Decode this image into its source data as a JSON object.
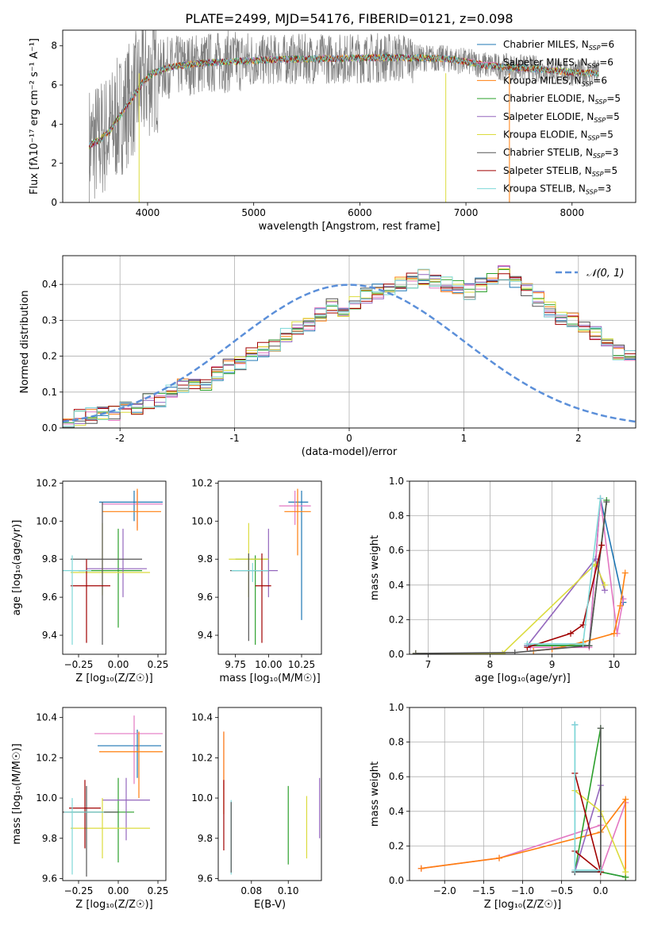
{
  "figure_title": "PLATE=2499, MJD=54176, FIBERID=0121, z=0.098",
  "colors": {
    "chabrier_miles": "#1f77b4",
    "salpeter_miles": "#e377c2",
    "kroupa_miles": "#ff7f0e",
    "chabrier_elodie": "#2ca02c",
    "salpeter_elodie": "#9467bd",
    "kroupa_elodie": "#dbdb3d",
    "chabrier_stelib": "#555555",
    "salpeter_stelib": "#a00000",
    "kroupa_stelib": "#7fd8d8",
    "gauss": "#5b8fd9"
  },
  "chart_data": [
    {
      "id": "spectrum",
      "type": "line",
      "xlabel": "wavelength [Angstrom, rest frame]",
      "ylabel": "Flux [f$_\\lambda$10$^{-17}$ erg cm$^{-2}$ s$^{-1}$ A$^{-1}$]",
      "ylabel_display": "Flux [fλ10⁻¹⁷ erg cm⁻² s⁻¹ A⁻¹]",
      "xlim": [
        3200,
        8600
      ],
      "ylim": [
        0,
        8.8
      ],
      "xticks": [
        4000,
        5000,
        6000,
        7000,
        8000
      ],
      "yticks": [
        0,
        2,
        4,
        6,
        8
      ],
      "data_wavelength_range": [
        3450,
        8250
      ],
      "continuum_x": [
        3450,
        3550,
        3650,
        3750,
        3850,
        3950,
        4050,
        4200,
        4400,
        4600,
        4800,
        5000,
        5200,
        5400,
        5600,
        5800,
        6000,
        6200,
        6400,
        6600,
        6800,
        7000,
        7200,
        7400,
        7600,
        7800,
        8000,
        8250
      ],
      "continuum_y": [
        2.9,
        3.2,
        3.7,
        4.5,
        5.3,
        6.1,
        6.6,
        6.9,
        7.05,
        7.15,
        7.2,
        7.25,
        7.3,
        7.32,
        7.35,
        7.35,
        7.38,
        7.4,
        7.4,
        7.38,
        7.35,
        7.2,
        7.0,
        6.9,
        6.85,
        6.75,
        6.65,
        6.6
      ],
      "legend_position": "upper right",
      "legend": [
        {
          "label": "Chabrier MILES, N",
          "sub": "SSP",
          "suffix": "=6",
          "color": "#1f77b4"
        },
        {
          "label": "Salpeter MILES, N",
          "sub": "SSP",
          "suffix": "=6",
          "color": "#e377c2"
        },
        {
          "label": "Kroupa MILES, N",
          "sub": "SSP",
          "suffix": "=6",
          "color": "#ff7f0e"
        },
        {
          "label": "Chabrier ELODIE, N",
          "sub": "SSP",
          "suffix": "=5",
          "color": "#2ca02c"
        },
        {
          "label": "Salpeter ELODIE, N",
          "sub": "SSP",
          "suffix": "=5",
          "color": "#9467bd"
        },
        {
          "label": "Kroupa ELODIE, N",
          "sub": "SSP",
          "suffix": "=5",
          "color": "#dbdb3d"
        },
        {
          "label": "Chabrier STELIB, N",
          "sub": "SSP",
          "suffix": "=3",
          "color": "#555555"
        },
        {
          "label": "Salpeter STELIB, N",
          "sub": "SSP",
          "suffix": "=5",
          "color": "#a00000"
        },
        {
          "label": "Kroupa STELIB, N",
          "sub": "SSP",
          "suffix": "=3",
          "color": "#7fd8d8"
        }
      ]
    },
    {
      "id": "residual_hist",
      "type": "histogram",
      "xlabel": "(data-model)/error",
      "ylabel": "Normed distribution",
      "xlim": [
        -2.5,
        2.5
      ],
      "ylim": [
        0,
        0.48
      ],
      "xticks": [
        -2,
        -1,
        0,
        1,
        2
      ],
      "yticks": [
        0.0,
        0.1,
        0.2,
        0.3,
        0.4
      ],
      "grid": true,
      "bin_edges_start": -2.5,
      "bin_width": 0.1,
      "values": [
        0.02,
        0.03,
        0.035,
        0.04,
        0.04,
        0.055,
        0.06,
        0.075,
        0.08,
        0.1,
        0.12,
        0.13,
        0.12,
        0.15,
        0.17,
        0.18,
        0.21,
        0.22,
        0.23,
        0.26,
        0.28,
        0.29,
        0.32,
        0.34,
        0.33,
        0.35,
        0.37,
        0.38,
        0.39,
        0.4,
        0.41,
        0.42,
        0.41,
        0.4,
        0.39,
        0.38,
        0.4,
        0.42,
        0.43,
        0.41,
        0.39,
        0.36,
        0.33,
        0.31,
        0.3,
        0.28,
        0.26,
        0.23,
        0.21,
        0.2
      ],
      "gauss_label": "𝒩(0, 1)",
      "legend_position": "upper right"
    },
    {
      "id": "age_vs_Z",
      "type": "errorbar",
      "xlabel": "Z [log₁₀(Z/Z☉)]",
      "ylabel": "age  [log₁₀(age/yr)]",
      "xlim": [
        -0.35,
        0.3
      ],
      "ylim": [
        9.3,
        10.21
      ],
      "xticks": [
        -0.25,
        0.0,
        0.25
      ],
      "xticklabels": [
        "−0.25",
        "0.00",
        "0.25"
      ],
      "yticks": [
        9.4,
        9.6,
        9.8,
        10.0,
        10.2
      ],
      "points": [
        {
          "x": 0.1,
          "xerr": [
            0.22,
            0.18
          ],
          "y": 10.1,
          "yerr": [
            0.1,
            0.06
          ],
          "color": "#1f77b4"
        },
        {
          "x": 0.12,
          "xerr": [
            0.22,
            0.16
          ],
          "y": 10.09,
          "yerr": [
            0.13,
            0.07
          ],
          "color": "#e377c2"
        },
        {
          "x": 0.12,
          "xerr": [
            0.22,
            0.15
          ],
          "y": 10.05,
          "yerr": [
            0.1,
            0.12
          ],
          "color": "#ff7f0e"
        },
        {
          "x": 0.0,
          "xerr": [
            0.25,
            0.15
          ],
          "y": 9.74,
          "yerr": [
            0.3,
            0.22
          ],
          "color": "#2ca02c"
        },
        {
          "x": 0.03,
          "xerr": [
            0.23,
            0.15
          ],
          "y": 9.75,
          "yerr": [
            0.15,
            0.21
          ],
          "color": "#9467bd"
        },
        {
          "x": -0.1,
          "xerr": [
            0.2,
            0.3
          ],
          "y": 9.73,
          "yerr": [
            0.12,
            0.26
          ],
          "color": "#dbdb3d"
        },
        {
          "x": -0.1,
          "xerr": [
            0.2,
            0.25
          ],
          "y": 9.8,
          "yerr": [
            0.45,
            0.3
          ],
          "color": "#555555"
        },
        {
          "x": -0.2,
          "xerr": [
            0.1,
            0.15
          ],
          "y": 9.66,
          "yerr": [
            0.3,
            0.14
          ],
          "color": "#a00000"
        },
        {
          "x": -0.29,
          "xerr": [
            0.06,
            0.12
          ],
          "y": 9.74,
          "yerr": [
            0.39,
            0.08
          ],
          "color": "#7fd8d8"
        }
      ]
    },
    {
      "id": "age_vs_mass",
      "type": "errorbar",
      "xlabel": "mass [log₁₀(M/M☉)]",
      "xlim": [
        9.62,
        10.4
      ],
      "ylim": [
        9.3,
        10.21
      ],
      "xticks": [
        9.75,
        10.0,
        10.25
      ],
      "xticklabels": [
        "9.75",
        "10.00",
        "10.25"
      ],
      "yticks": [
        9.4,
        9.6,
        9.8,
        10.0,
        10.2
      ],
      "points": [
        {
          "x": 10.25,
          "xerr": [
            0.1,
            0.05
          ],
          "y": 10.1,
          "yerr": [
            0.62,
            0.06
          ],
          "color": "#1f77b4"
        },
        {
          "x": 10.2,
          "xerr": [
            0.12,
            0.12
          ],
          "y": 10.08,
          "yerr": [
            0.1,
            0.08
          ],
          "color": "#e377c2"
        },
        {
          "x": 10.22,
          "xerr": [
            0.1,
            0.1
          ],
          "y": 10.05,
          "yerr": [
            0.23,
            0.12
          ],
          "color": "#ff7f0e"
        },
        {
          "x": 9.9,
          "xerr": [
            0.15,
            0.1
          ],
          "y": 9.8,
          "yerr": [
            0.45,
            0.02
          ],
          "color": "#2ca02c"
        },
        {
          "x": 10.0,
          "xerr": [
            0.1,
            0.07
          ],
          "y": 9.74,
          "yerr": [
            0.14,
            0.22
          ],
          "color": "#9467bd"
        },
        {
          "x": 9.85,
          "xerr": [
            0.15,
            0.15
          ],
          "y": 9.8,
          "yerr": [
            0.2,
            0.19
          ],
          "color": "#dbdb3d"
        },
        {
          "x": 9.85,
          "xerr": [
            0.14,
            0.15
          ],
          "y": 9.74,
          "yerr": [
            0.37,
            0.09
          ],
          "color": "#555555"
        },
        {
          "x": 9.95,
          "xerr": [
            0.05,
            0.07
          ],
          "y": 9.66,
          "yerr": [
            0.3,
            0.17
          ],
          "color": "#a00000"
        },
        {
          "x": 9.88,
          "xerr": [
            0.16,
            0.12
          ],
          "y": 9.74,
          "yerr": [
            0.06,
            0.04
          ],
          "color": "#7fd8d8"
        }
      ]
    },
    {
      "id": "mw_vs_age",
      "type": "line",
      "xlabel": "age  [log₁₀(age/yr)]",
      "ylabel": "mass weight",
      "xlim": [
        6.7,
        10.35
      ],
      "ylim": [
        0,
        1.0
      ],
      "xticks": [
        7,
        8,
        9,
        10
      ],
      "yticks": [
        0.0,
        0.2,
        0.4,
        0.6,
        0.8,
        1.0
      ],
      "grid": true,
      "series": [
        {
          "color": "#1f77b4",
          "x": [
            8.6,
            9.6,
            9.78,
            10.15
          ],
          "y": [
            0.05,
            0.05,
            0.9,
            0.3
          ]
        },
        {
          "color": "#e377c2",
          "x": [
            8.65,
            9.6,
            9.78,
            10.05,
            10.15
          ],
          "y": [
            0.04,
            0.04,
            0.9,
            0.12,
            0.32
          ]
        },
        {
          "color": "#ff7f0e",
          "x": [
            8.7,
            9.0,
            9.5,
            10.0,
            10.1,
            10.18
          ],
          "y": [
            0.02,
            0.03,
            0.07,
            0.12,
            0.28,
            0.47
          ]
        },
        {
          "color": "#2ca02c",
          "x": [
            8.6,
            9.6,
            9.88
          ],
          "y": [
            0.05,
            0.05,
            0.89
          ]
        },
        {
          "color": "#9467bd",
          "x": [
            8.6,
            9.7,
            9.85
          ],
          "y": [
            0.05,
            0.55,
            0.37
          ]
        },
        {
          "color": "#dbdb3d",
          "x": [
            6.8,
            8.2,
            9.7,
            9.85
          ],
          "y": [
            0.005,
            0.005,
            0.52,
            0.4
          ]
        },
        {
          "color": "#555555",
          "x": [
            6.8,
            8.4,
            9.6,
            9.88
          ],
          "y": [
            0.005,
            0.01,
            0.05,
            0.88
          ]
        },
        {
          "color": "#a00000",
          "x": [
            8.6,
            9.3,
            9.5,
            9.8
          ],
          "y": [
            0.04,
            0.12,
            0.17,
            0.63
          ]
        },
        {
          "color": "#7fd8d8",
          "x": [
            8.6,
            9.5,
            9.78
          ],
          "y": [
            0.06,
            0.06,
            0.9
          ]
        }
      ]
    },
    {
      "id": "mass_vs_Z",
      "type": "errorbar",
      "xlabel": "Z [log₁₀(Z/Z☉)]",
      "ylabel": "mass [log₁₀(M/M☉)]",
      "xlim": [
        -0.35,
        0.3
      ],
      "ylim": [
        9.59,
        10.45
      ],
      "xticks": [
        -0.25,
        0.0,
        0.25
      ],
      "xticklabels": [
        "−0.25",
        "0.00",
        "0.25"
      ],
      "yticks": [
        9.6,
        9.8,
        10.0,
        10.2,
        10.4
      ],
      "points": [
        {
          "x": 0.12,
          "xerr": [
            0.25,
            0.15
          ],
          "y": 10.26,
          "yerr": [
            0.16,
            0.08
          ],
          "color": "#1f77b4"
        },
        {
          "x": 0.1,
          "xerr": [
            0.25,
            0.18
          ],
          "y": 10.32,
          "yerr": [
            0.25,
            0.09
          ],
          "color": "#e377c2"
        },
        {
          "x": 0.13,
          "xerr": [
            0.25,
            0.15
          ],
          "y": 10.23,
          "yerr": [
            0.23,
            0.1
          ],
          "color": "#ff7f0e"
        },
        {
          "x": 0.0,
          "xerr": [
            0.3,
            0.1
          ],
          "y": 9.93,
          "yerr": [
            0.25,
            0.17
          ],
          "color": "#2ca02c"
        },
        {
          "x": 0.05,
          "xerr": [
            0.15,
            0.15
          ],
          "y": 9.99,
          "yerr": [
            0.2,
            0.11
          ],
          "color": "#9467bd"
        },
        {
          "x": -0.1,
          "xerr": [
            0.2,
            0.3
          ],
          "y": 9.85,
          "yerr": [
            0.15,
            0.15
          ],
          "color": "#dbdb3d"
        },
        {
          "x": -0.2,
          "xerr": [
            0.15,
            0.2
          ],
          "y": 9.93,
          "yerr": [
            0.32,
            0.13
          ],
          "color": "#555555"
        },
        {
          "x": -0.21,
          "xerr": [
            0.1,
            0.1
          ],
          "y": 9.95,
          "yerr": [
            0.2,
            0.14
          ],
          "color": "#a00000"
        },
        {
          "x": -0.29,
          "xerr": [
            0.05,
            0.2
          ],
          "y": 9.93,
          "yerr": [
            0.31,
            0.07
          ],
          "color": "#7fd8d8"
        }
      ]
    },
    {
      "id": "mass_vs_ebv",
      "type": "errorbar",
      "xlabel": "E(B-V)",
      "xlim": [
        0.062,
        0.118
      ],
      "ylim": [
        9.59,
        10.45
      ],
      "xticks": [
        0.08,
        0.1
      ],
      "xticklabels": [
        "0.08",
        "0.10"
      ],
      "yticks": [
        9.6,
        9.8,
        10.0,
        10.2,
        10.4
      ],
      "points": [
        {
          "x": 0.065,
          "y": 10.2,
          "yerr": [
            0.16,
            0.13
          ],
          "color": "#e377c2"
        },
        {
          "x": 0.065,
          "y": 10.1,
          "yerr": [
            0.18,
            0.23
          ],
          "color": "#ff7f0e"
        },
        {
          "x": 0.065,
          "y": 9.92,
          "yerr": [
            0.18,
            0.17
          ],
          "color": "#a00000"
        },
        {
          "x": 0.069,
          "y": 9.8,
          "yerr": [
            0.18,
            0.19
          ],
          "color": "#7fd8d8"
        },
        {
          "x": 0.069,
          "y": 9.8,
          "yerr": [
            0.17,
            0.18
          ],
          "color": "#555555"
        },
        {
          "x": 0.1,
          "y": 9.87,
          "yerr": [
            0.2,
            0.19
          ],
          "color": "#2ca02c"
        },
        {
          "x": 0.11,
          "y": 9.85,
          "yerr": [
            0.15,
            0.16
          ],
          "color": "#dbdb3d"
        },
        {
          "x": 0.117,
          "y": 9.95,
          "yerr": [
            0.15,
            0.15
          ],
          "color": "#9467bd"
        }
      ]
    },
    {
      "id": "mw_vs_Z",
      "type": "line",
      "xlabel": "Z [log₁₀(Z/Z☉)]",
      "ylabel": "mass weight",
      "xlim": [
        -2.45,
        0.45
      ],
      "ylim": [
        0,
        1.0
      ],
      "xticks": [
        -2.0,
        -1.5,
        -1.0,
        -0.5,
        0.0
      ],
      "xticklabels": [
        "−2.0",
        "−1.5",
        "−1.0",
        "−0.5",
        "0.0"
      ],
      "yticks": [
        0.0,
        0.2,
        0.4,
        0.6,
        0.8,
        1.0
      ],
      "grid": true,
      "series": [
        {
          "color": "#1f77b4",
          "x": [
            -0.33,
            -0.33,
            0.0,
            0.32
          ],
          "y": [
            0.9,
            0.05,
            0.05,
            0.02
          ]
        },
        {
          "color": "#e377c2",
          "x": [
            -2.3,
            -1.3,
            0.0,
            0.0,
            0.32
          ],
          "y": [
            0.07,
            0.13,
            0.32,
            0.05,
            0.45
          ]
        },
        {
          "color": "#ff7f0e",
          "x": [
            -2.3,
            -1.3,
            0.0,
            0.32,
            0.32
          ],
          "y": [
            0.07,
            0.13,
            0.28,
            0.47,
            0.02
          ]
        },
        {
          "color": "#2ca02c",
          "x": [
            -0.33,
            0.0,
            0.0,
            0.32
          ],
          "y": [
            0.05,
            0.88,
            0.05,
            0.02
          ]
        },
        {
          "color": "#9467bd",
          "x": [
            -0.33,
            0.0,
            0.0
          ],
          "y": [
            0.05,
            0.55,
            0.37
          ]
        },
        {
          "color": "#dbdb3d",
          "x": [
            -0.33,
            0.0,
            0.32
          ],
          "y": [
            0.52,
            0.4,
            0.05
          ]
        },
        {
          "color": "#555555",
          "x": [
            -0.33,
            0.0,
            0.0
          ],
          "y": [
            0.05,
            0.05,
            0.88
          ]
        },
        {
          "color": "#a00000",
          "x": [
            -0.33,
            0.0,
            -0.33
          ],
          "y": [
            0.17,
            0.05,
            0.62
          ]
        },
        {
          "color": "#7fd8d8",
          "x": [
            -0.33,
            -0.33,
            0.0
          ],
          "y": [
            0.9,
            0.06,
            0.06
          ]
        }
      ]
    }
  ]
}
